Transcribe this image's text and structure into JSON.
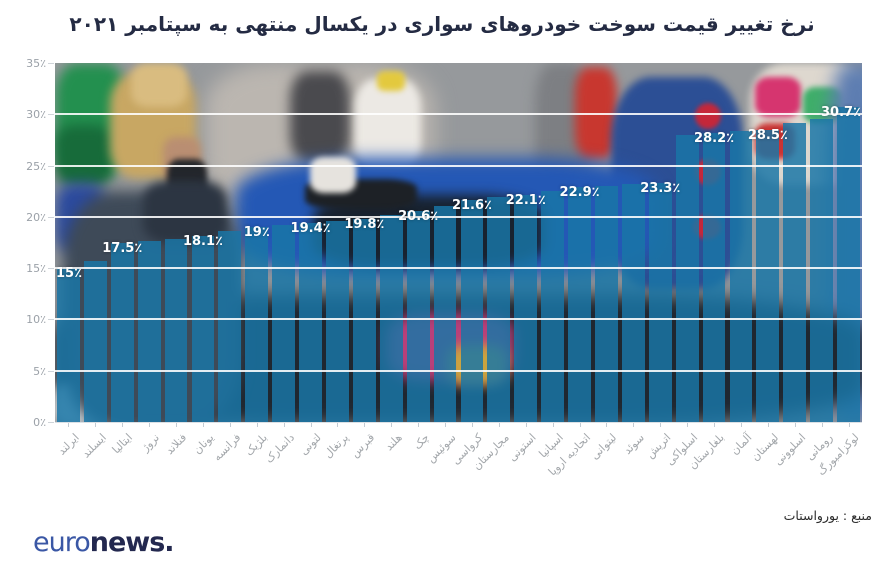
{
  "source_label": "منبع : یورواستات",
  "logo": {
    "part1": "euro",
    "part2": "news."
  },
  "colors": {
    "bar": "rgba(25,118,167,0.84)",
    "title": "#242b43",
    "axis_label": "#9ba1a8",
    "value_label": "#ffffff",
    "gridline": "rgba(255,255,255,0.88)",
    "logo_euro": "#3a57a5",
    "logo_news": "#23284f"
  },
  "chart_data": {
    "type": "bar",
    "title": "نرخ تغییر قیمت سوخت خودروهای سواری در یکسال منتهی به سپتامبر ۲۰۲۱",
    "categories": [
      "ایرلند",
      "ایسلند",
      "ایتالیا",
      "نروژ",
      "فنلاند",
      "یونان",
      "فرانسه",
      "بلژیک",
      "دانمارک",
      "لتونی",
      "پرتغال",
      "قبرس",
      "هلند",
      "چک",
      "سوئیس",
      "کرواسی",
      "مجارستان",
      "استونی",
      "اسپانیا",
      "اتحادیه اروپا",
      "لیتوانی",
      "سوئد",
      "اتریش",
      "اسلواکی",
      "بلغارستان",
      "آلمان",
      "لهستان",
      "اسلوونی",
      "رومانی",
      "لوکزامبورگ"
    ],
    "values": [
      15,
      15.7,
      17.5,
      17.6,
      17.8,
      18.1,
      18.6,
      19,
      19.2,
      19.4,
      19.6,
      19.8,
      20.2,
      20.6,
      21.1,
      21.6,
      21.9,
      22.1,
      22.5,
      22.9,
      23,
      23.2,
      23.3,
      28,
      28.2,
      28.4,
      28.5,
      29.2,
      29.5,
      30.7
    ],
    "bar_labels": [
      "15٪",
      "",
      "17.5٪",
      "",
      "",
      "18.1٪",
      "",
      "19٪",
      "",
      "19.4٪",
      "",
      "19.8٪",
      "",
      "20.6٪",
      "",
      "21.6٪",
      "",
      "22.1٪",
      "",
      "22.9٪",
      "",
      "",
      "23.3٪",
      "",
      "28.2٪",
      "",
      "28.5٪",
      "",
      "",
      "30.7٪"
    ],
    "ylim": [
      0,
      35
    ],
    "yticks": [
      0,
      5,
      10,
      15,
      20,
      25,
      30,
      35
    ],
    "ytick_labels": [
      "0٪",
      "5٪",
      "10٪",
      "15٪",
      "20٪",
      "25٪",
      "30٪",
      "35٪"
    ],
    "grid": true,
    "legend": "none",
    "xlabel": "",
    "ylabel": ""
  }
}
